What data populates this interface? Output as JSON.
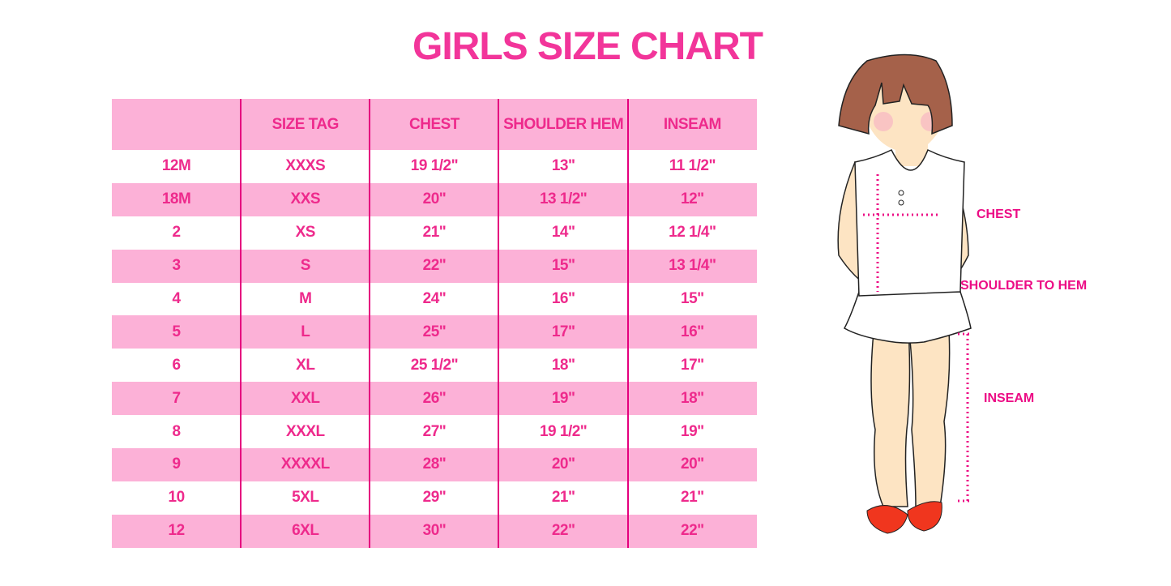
{
  "title": "GIRLS SIZE CHART",
  "table": {
    "headers": [
      "",
      "SIZE TAG",
      "CHEST",
      "SHOULDER HEM",
      "INSEAM"
    ],
    "rows": [
      [
        "12M",
        "XXXS",
        "19 1/2\"",
        "13\"",
        "11 1/2\""
      ],
      [
        "18M",
        "XXS",
        "20\"",
        "13 1/2\"",
        "12\""
      ],
      [
        "2",
        "XS",
        "21\"",
        "14\"",
        "12 1/4\""
      ],
      [
        "3",
        "S",
        "22\"",
        "15\"",
        "13 1/4\""
      ],
      [
        "4",
        "M",
        "24\"",
        "16\"",
        "15\""
      ],
      [
        "5",
        "L",
        "25\"",
        "17\"",
        "16\""
      ],
      [
        "6",
        "XL",
        "25 1/2\"",
        "18\"",
        "17\""
      ],
      [
        "7",
        "XXL",
        "26\"",
        "19\"",
        "18\""
      ],
      [
        "8",
        "XXXL",
        "27\"",
        "19 1/2\"",
        "19\""
      ],
      [
        "9",
        "XXXXL",
        "28\"",
        "20\"",
        "20\""
      ],
      [
        "10",
        "5XL",
        "29\"",
        "21\"",
        "21\""
      ],
      [
        "12",
        "6XL",
        "30\"",
        "22\"",
        "22\""
      ]
    ]
  },
  "diagram": {
    "labels": {
      "chest": "CHEST",
      "shoulder": "SHOULDER TO HEM",
      "inseam": "INSEAM"
    }
  },
  "colors": {
    "accent": "#ee2a8c",
    "row_pink": "#fcb1d7",
    "divider": "#e5007e"
  }
}
